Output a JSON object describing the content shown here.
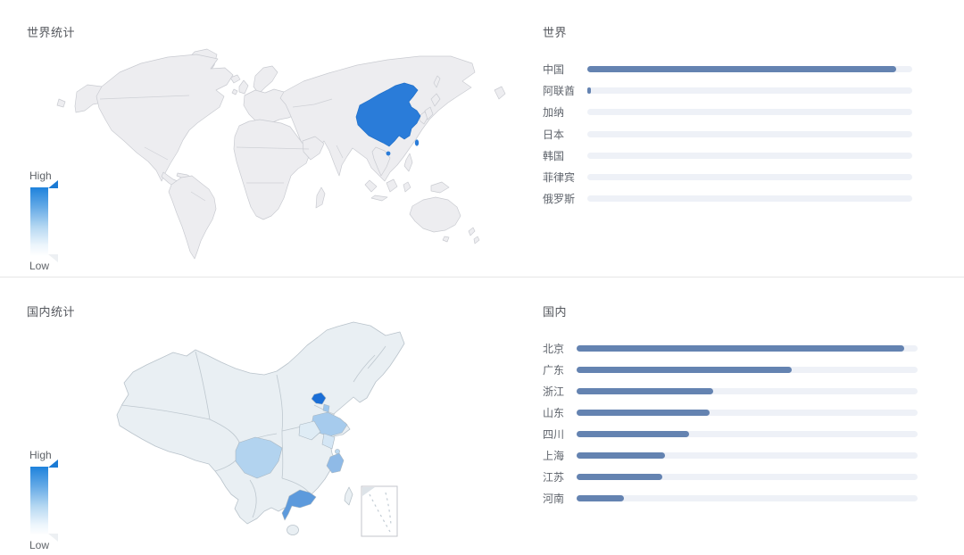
{
  "sections": [
    {
      "id": "world",
      "title": "世界统计",
      "chart_title": "世界",
      "legend": {
        "high_label": "High",
        "low_label": "Low"
      }
    },
    {
      "id": "china",
      "title": "国内统计",
      "chart_title": "国内",
      "legend": {
        "high_label": "High",
        "low_label": "Low"
      }
    }
  ],
  "chart_data": [
    {
      "type": "bar",
      "orientation": "horizontal",
      "title": "世界",
      "categories": [
        "中国",
        "阿联酋",
        "加纳",
        "日本",
        "韩国",
        "菲律宾",
        "俄罗斯"
      ],
      "values": [
        95,
        1,
        0,
        0,
        0,
        0,
        0
      ],
      "value_unit": "percent_of_track_estimated",
      "xlim": [
        0,
        100
      ],
      "grid": false,
      "legend_position": "none"
    },
    {
      "type": "bar",
      "orientation": "horizontal",
      "title": "国内",
      "categories": [
        "北京",
        "广东",
        "浙江",
        "山东",
        "四川",
        "上海",
        "江苏",
        "河南"
      ],
      "values": [
        96,
        63,
        40,
        39,
        33,
        26,
        25,
        14
      ],
      "value_unit": "percent_of_track_estimated",
      "xlim": [
        0,
        100
      ],
      "grid": false,
      "legend_position": "none"
    }
  ],
  "maps": {
    "world": {
      "type": "choropleth",
      "highlighted": [
        {
          "name": "中国",
          "color": "#2a7cd9"
        }
      ],
      "land_color": "#ededf0",
      "legend": {
        "high": "High",
        "low": "Low"
      }
    },
    "china": {
      "type": "choropleth",
      "base_color": "#e9eff3",
      "provinces_highlighted": [
        {
          "name": "北京",
          "color": "#1a6ed6"
        },
        {
          "name": "广东",
          "color": "#5d9adc"
        },
        {
          "name": "浙江",
          "color": "#8fbae7"
        },
        {
          "name": "山东",
          "color": "#a6cbed"
        },
        {
          "name": "四川",
          "color": "#b2d3ef"
        },
        {
          "name": "上海",
          "color": "#bdd9f1"
        },
        {
          "name": "江苏",
          "color": "#d4e6f5"
        },
        {
          "name": "天津",
          "color": "#9dc6ec"
        },
        {
          "name": "河南",
          "color": "#dfecf5"
        }
      ],
      "legend": {
        "high": "High",
        "low": "Low"
      }
    }
  },
  "colors": {
    "background": "#ffffff",
    "divider": "#e6e6e6",
    "title_text": "#54575d",
    "label_text": "#5f646c",
    "bar_fill": "#6483b1",
    "bar_track": "#eef1f7",
    "map_land": "#ededf0",
    "map_border": "#c9cbd1",
    "china_highlight": "#2a7cd9",
    "legend_gradient_top": "#1e82dc",
    "legend_gradient_bottom": "#ffffff"
  }
}
